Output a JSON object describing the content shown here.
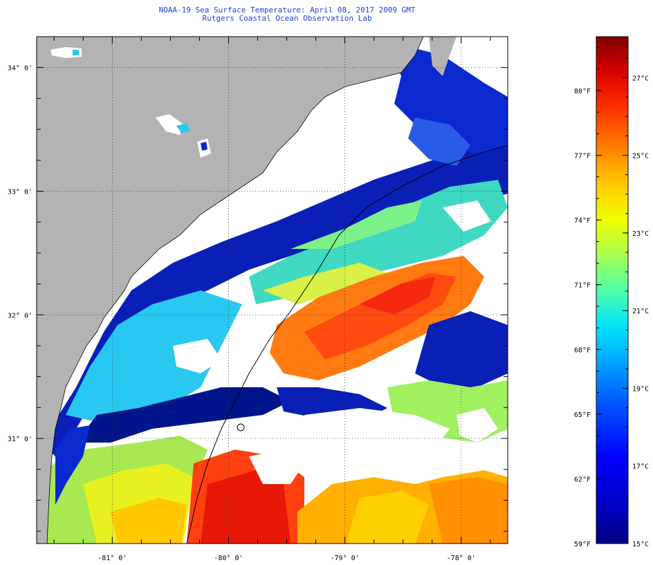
{
  "header": {
    "title": "NOAA-19 Sea Surface Temperature:  April 08, 2017 2009 GMT",
    "subtitle": "Rutgers Coastal Ocean Observation Lab"
  },
  "map": {
    "lat_labels": [
      "34° 0'",
      "33° 0'",
      "32° 0'",
      "31° 0'"
    ],
    "lat_values": [
      34,
      33,
      32,
      31
    ],
    "lon_labels": [
      "-81° 0'",
      "-80° 0'",
      "-79° 0'",
      "-78° 0'"
    ],
    "lon_values": [
      -81,
      -80,
      -79,
      -78
    ],
    "lat_range": [
      30.15,
      34.25
    ],
    "lon_range": [
      -81.65,
      -77.6
    ],
    "land_color": "#b3b3b3",
    "cloud_color": "#ffffff"
  },
  "colorbar": {
    "f_labels": [
      "80°F",
      "77°F",
      "74°F",
      "71°F",
      "68°F",
      "65°F",
      "62°F",
      "59°F"
    ],
    "c_labels": [
      "27°C",
      "25°C",
      "23°C",
      "21°C",
      "19°C",
      "17°C",
      "15°C"
    ],
    "range_f": [
      59,
      82.5
    ],
    "colors": [
      "#00007f",
      "#0000c8",
      "#0000ff",
      "#0050ff",
      "#00a8ff",
      "#00e4f8",
      "#50ffa8",
      "#a8ff50",
      "#f0ff00",
      "#ffc800",
      "#ff8000",
      "#ff3000",
      "#d80000",
      "#7f0000"
    ]
  }
}
